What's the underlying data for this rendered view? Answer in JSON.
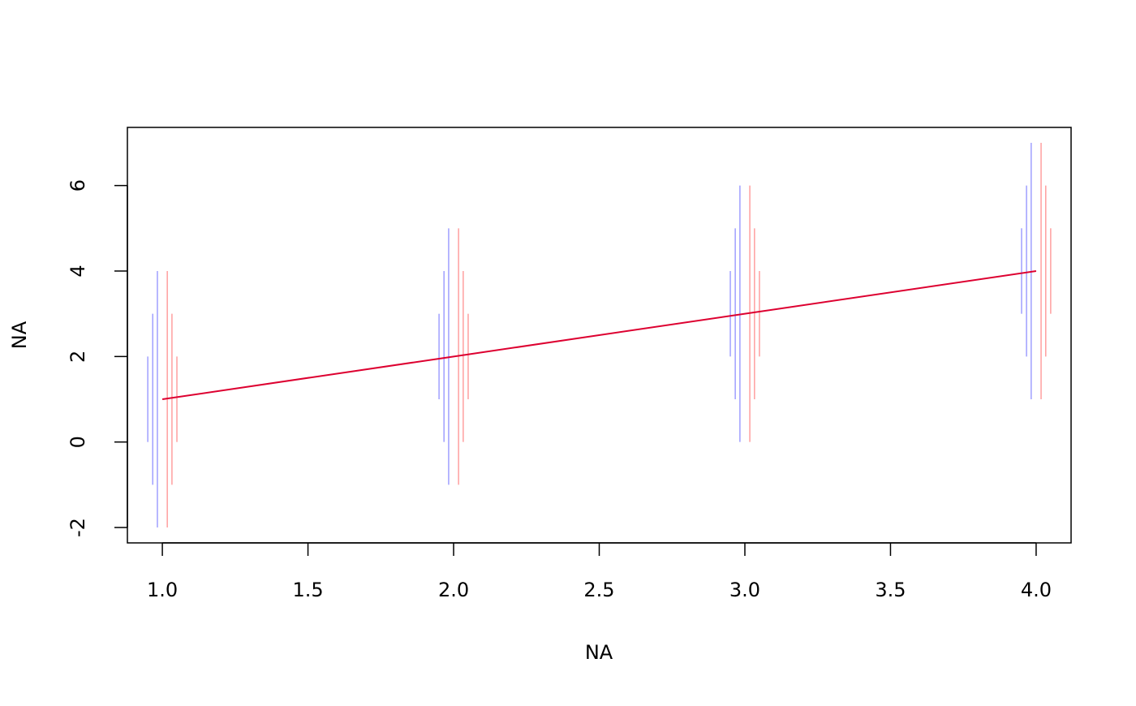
{
  "chart_data": {
    "type": "errorbar",
    "xlabel": "NA",
    "ylabel": "NA",
    "xlim": [
      0.88,
      4.12
    ],
    "ylim": [
      -2.36,
      7.36
    ],
    "xticks": [
      {
        "value": 1,
        "label": "1.0"
      },
      1.5,
      {
        "value": 2,
        "label": "2.0"
      },
      2.5,
      {
        "value": 3,
        "label": "3.0"
      },
      3.5,
      {
        "value": 4,
        "label": "4.0"
      }
    ],
    "yticks": [
      -2,
      0,
      2,
      4,
      6
    ],
    "series": [
      {
        "color": "#9f9fff",
        "x": [
          0.95,
          0.967,
          0.983,
          1.95,
          1.967,
          1.983,
          2.95,
          2.967,
          2.983,
          3.95,
          3.967,
          3.983
        ],
        "low": [
          0,
          -1,
          -2,
          1,
          0,
          -1,
          2,
          1,
          0,
          3,
          2,
          1
        ],
        "high": [
          2,
          3,
          4,
          3,
          4,
          5,
          4,
          5,
          6,
          5,
          6,
          7
        ]
      },
      {
        "color": "#ff9f9f",
        "x": [
          1.017,
          1.033,
          1.05,
          2.017,
          2.033,
          2.05,
          3.017,
          3.033,
          3.05,
          4.017,
          4.033,
          4.05
        ],
        "low": [
          -2,
          -1,
          0,
          -1,
          0,
          1,
          0,
          1,
          2,
          1,
          2,
          3
        ],
        "high": [
          4,
          3,
          2,
          5,
          4,
          3,
          6,
          5,
          4,
          7,
          6,
          5
        ]
      }
    ],
    "line": {
      "color": "#dd0030",
      "x": [
        1,
        2,
        3,
        4
      ],
      "values": [
        1,
        2,
        3,
        4
      ]
    }
  }
}
